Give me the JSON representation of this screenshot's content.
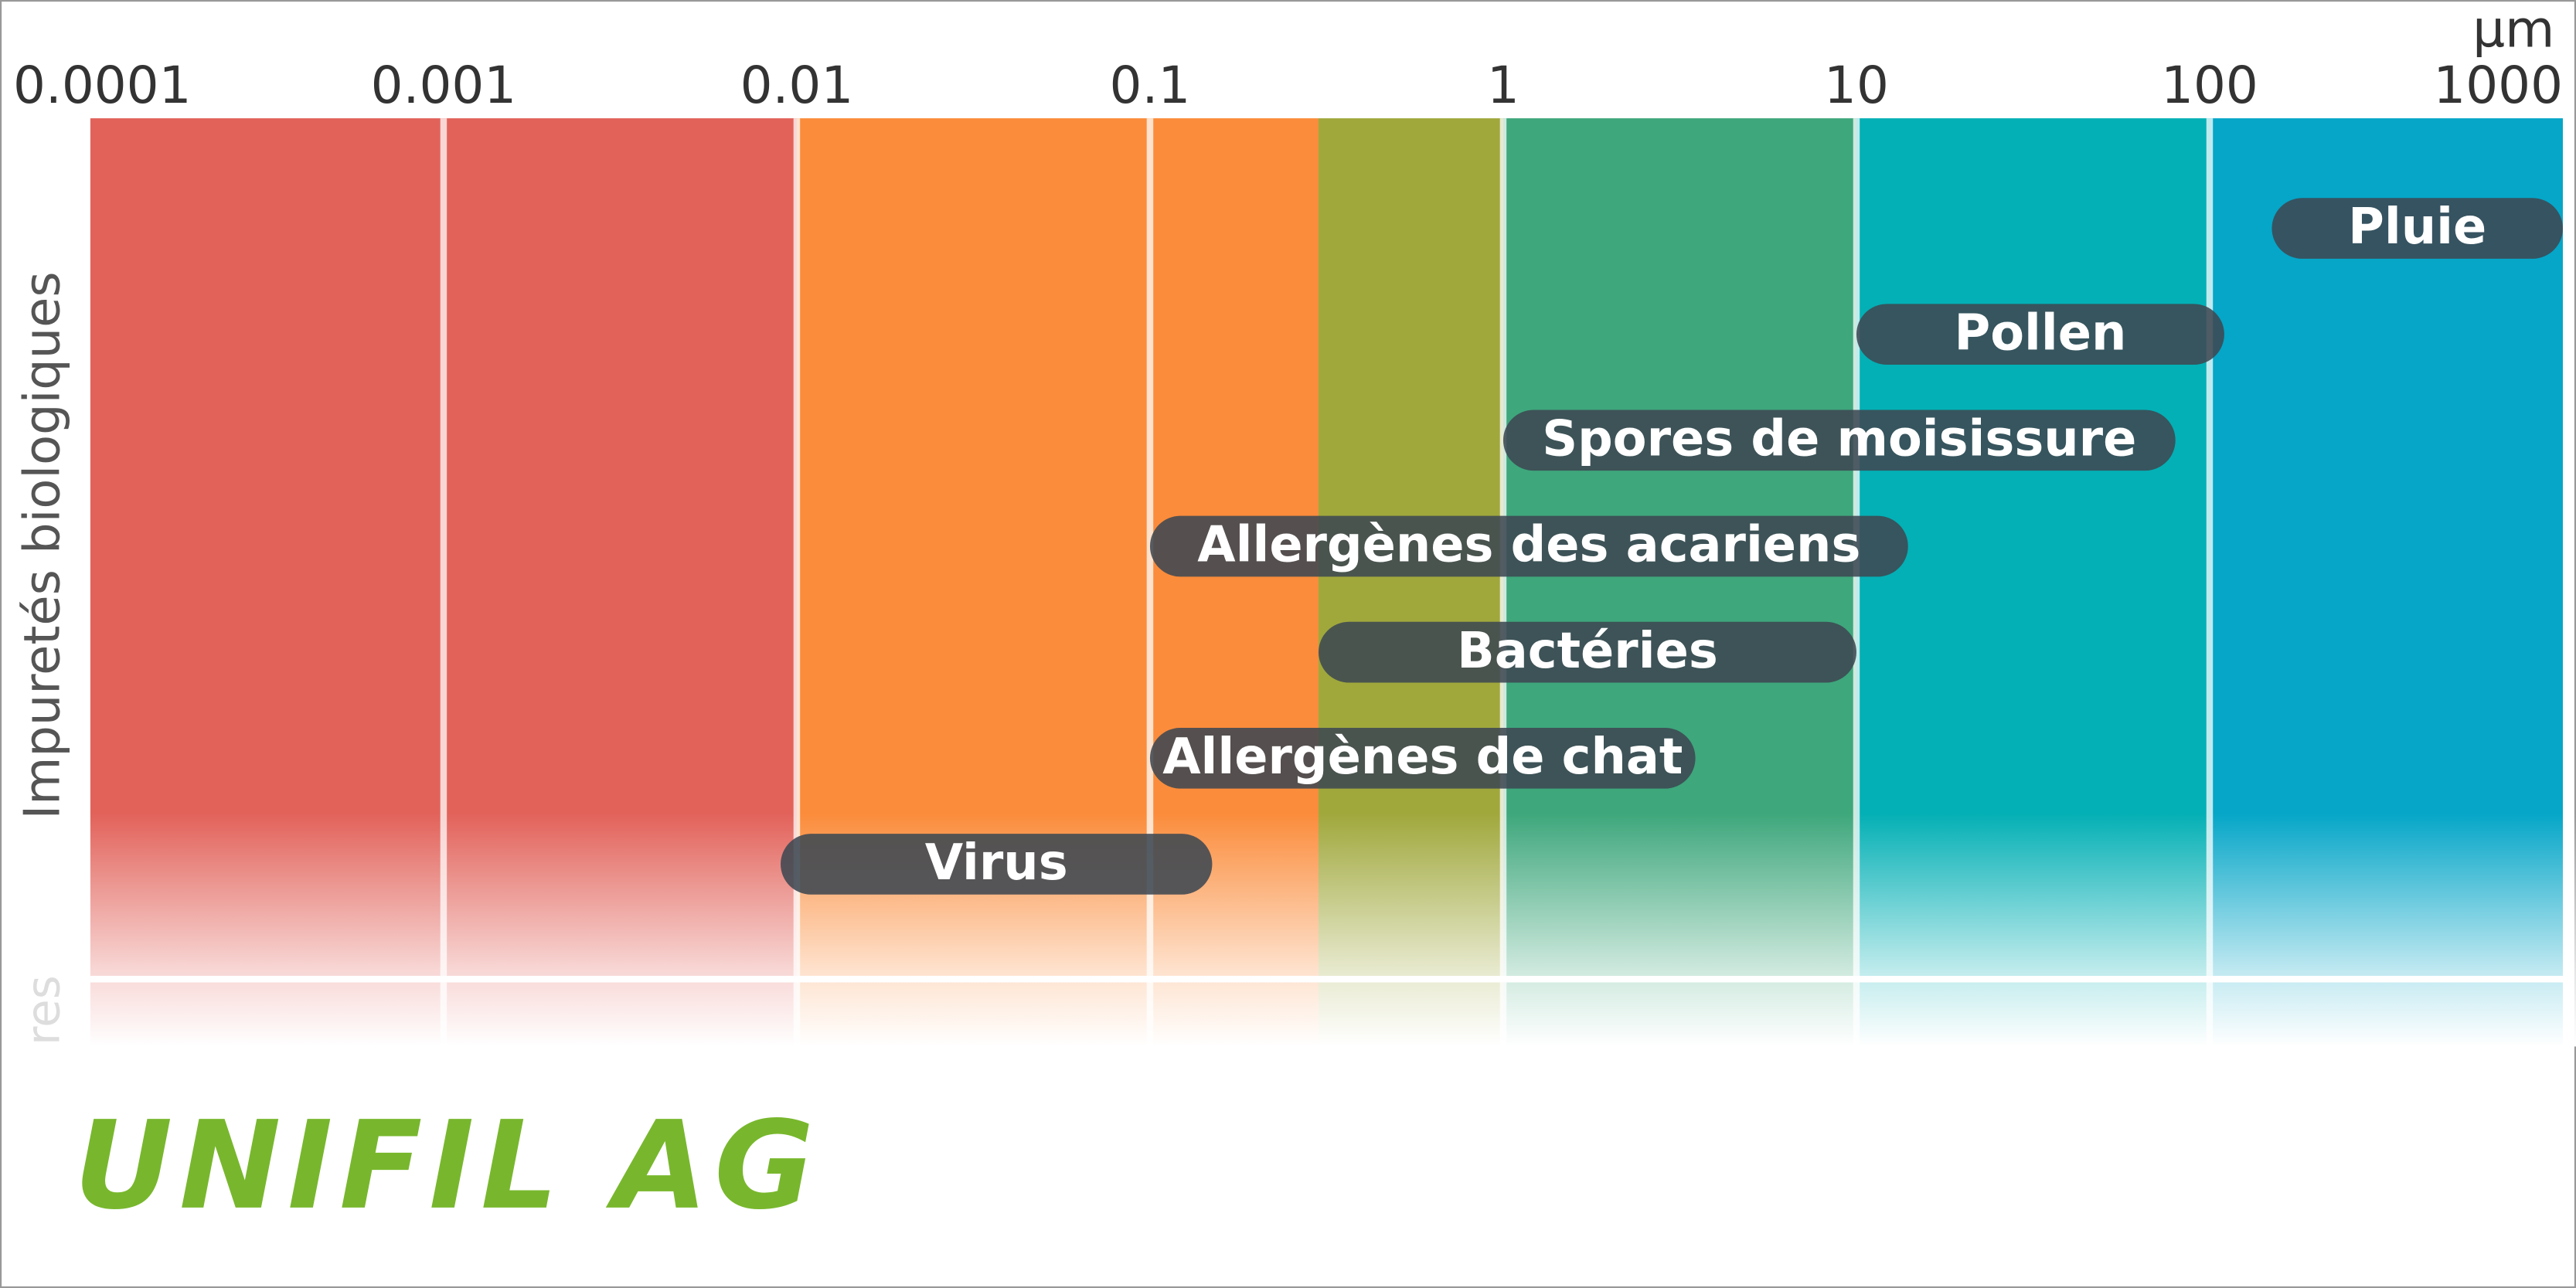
{
  "chart_data": {
    "type": "range",
    "unit": "µm",
    "ylabel": "Impuretés biologiques",
    "next_ylabel": "res",
    "log_x": true,
    "xlim": [
      0.0001,
      1000
    ],
    "xticks": [
      0.0001,
      0.001,
      0.01,
      0.1,
      1,
      10,
      100,
      1000
    ],
    "categories": [
      "Pluie",
      "Pollen",
      "Spores de moisissure",
      "Allergènes des acariens",
      "Bactéries",
      "Allergènes de chat",
      "Virus"
    ],
    "low": [
      150,
      10,
      1,
      0.1,
      0.3,
      0.1,
      0.009
    ],
    "high": [
      1000,
      110,
      80,
      14,
      10,
      3.5,
      0.15
    ],
    "bar_color": "#3d4852",
    "bands": [
      {
        "from": 0.0001,
        "to": 0.01,
        "color": "#e2625a"
      },
      {
        "from": 0.01,
        "to": 0.3,
        "color": "#fb8c3b"
      },
      {
        "from": 0.3,
        "to": 1,
        "color": "#a0a83c"
      },
      {
        "from": 1,
        "to": 10,
        "color": "#3ea77c"
      },
      {
        "from": 10,
        "to": 100,
        "color": "#03b0b5"
      },
      {
        "from": 100,
        "to": 1000,
        "color": "#05a6c8"
      }
    ]
  },
  "logo": {
    "text": "UNIFIL AG",
    "color": "#78b72d"
  }
}
